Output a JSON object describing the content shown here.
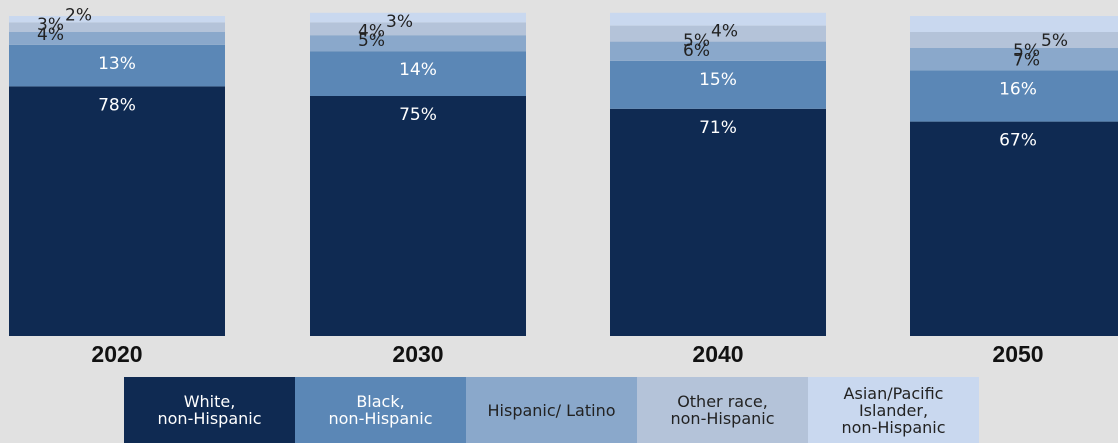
{
  "chart_data": {
    "type": "bar",
    "stacked": true,
    "categories": [
      "2020",
      "2030",
      "2040",
      "2050"
    ],
    "series": [
      {
        "name": "White,\nnon-Hispanic",
        "values": [
          78,
          75,
          71,
          67
        ],
        "color": "#0f2a52",
        "label_color": "#ffffff"
      },
      {
        "name": "Black,\nnon-Hispanic",
        "values": [
          13,
          14,
          15,
          16
        ],
        "color": "#5b87b6",
        "label_color": "#ffffff"
      },
      {
        "name": "Hispanic/ Latino",
        "values": [
          4,
          5,
          6,
          7
        ],
        "color": "#8aa8cb",
        "label_color": "#222222"
      },
      {
        "name": "Other race,\nnon-Hispanic",
        "values": [
          3,
          4,
          5,
          5
        ],
        "color": "#b4c3d9",
        "label_color": "#222222"
      },
      {
        "name": "Asian/Pacific\nIslander,\nnon-Hispanic",
        "values": [
          2,
          3,
          4,
          5
        ],
        "color": "#c9d8ef",
        "label_color": "#222222"
      }
    ],
    "value_suffix": "%",
    "legend_position": "bottom",
    "grid": false
  }
}
